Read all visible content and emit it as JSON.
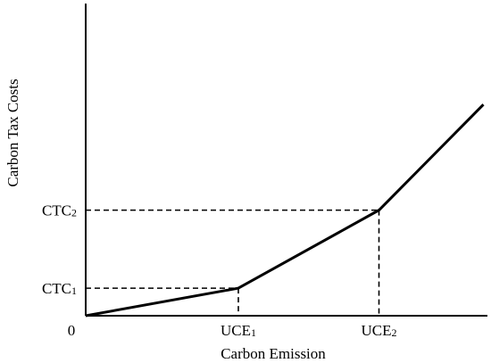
{
  "chart_data": {
    "type": "line",
    "title": "",
    "xlabel": "Carbon Emission",
    "ylabel": "Carbon Tax Costs",
    "origin_label": "0",
    "x_ticks": [
      {
        "label": "UCE",
        "sub": "1",
        "x": 3.8
      },
      {
        "label": "UCE",
        "sub": "2",
        "x": 7.3
      }
    ],
    "y_ticks": [
      {
        "label": "CTC",
        "sub": "1",
        "y": 1.2
      },
      {
        "label": "CTC",
        "sub": "2",
        "y": 4.6
      }
    ],
    "xlim": [
      0,
      10
    ],
    "ylim": [
      0,
      13.6
    ],
    "grid": false,
    "series": [
      {
        "x": [
          0,
          3.8,
          7.3,
          9.9
        ],
        "y": [
          0,
          1.2,
          4.6,
          9.2
        ]
      }
    ],
    "guides": [
      {
        "x": 3.8,
        "y": 1.2
      },
      {
        "x": 7.3,
        "y": 4.6
      }
    ],
    "line_color": "#000000"
  }
}
